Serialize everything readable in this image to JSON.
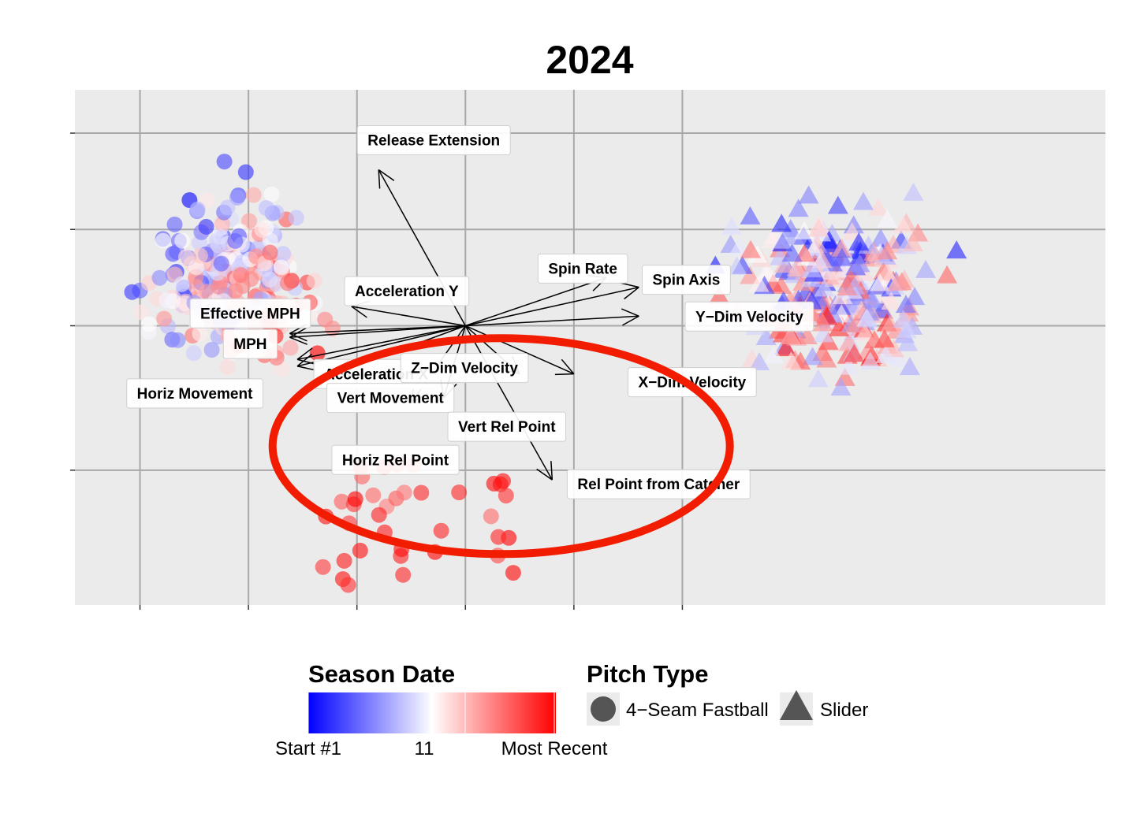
{
  "chart_data": {
    "type": "scatter",
    "title": "2024",
    "xlabel": "",
    "ylabel": "",
    "xlim": [
      -3.6,
      5.9
    ],
    "ylim": [
      -2.9,
      2.45
    ],
    "grid": true,
    "legend_position": "bottom",
    "series": [
      {
        "name": "4−Seam Fastball",
        "shape": "circle",
        "center": [
          -2.2,
          0.6
        ],
        "count": 320
      },
      {
        "name": "Slider",
        "shape": "triangle",
        "center": [
          3.4,
          0.4
        ],
        "count": 300
      }
    ],
    "vectors": [
      {
        "label": "Release Extension",
        "x": -0.8,
        "y": 1.62
      },
      {
        "label": "Spin Rate",
        "x": 1.3,
        "y": 0.5
      },
      {
        "label": "Spin Axis",
        "x": 1.6,
        "y": 0.4
      },
      {
        "label": "Y−Dim Velocity",
        "x": 1.6,
        "y": 0.1
      },
      {
        "label": "Effective MPH",
        "x": -1.62,
        "y": -0.08
      },
      {
        "label": "Acceleration Y",
        "x": -1.05,
        "y": 0.2
      },
      {
        "label": "MPH",
        "x": -1.62,
        "y": -0.12
      },
      {
        "label": "Acceleration X",
        "x": -1.55,
        "y": -0.35
      },
      {
        "label": "Z−Dim Velocity",
        "x": 0.5,
        "y": -0.5
      },
      {
        "label": "X−Dim Velocity",
        "x": 1.0,
        "y": -0.5
      },
      {
        "label": "Horiz Movement",
        "x": -1.55,
        "y": -0.42
      },
      {
        "label": "Vert Movement",
        "x": -1.2,
        "y": -0.5
      },
      {
        "label": "Vert Rel Point",
        "x": -0.2,
        "y": -0.75
      },
      {
        "label": "Horiz Rel Point",
        "x": -0.5,
        "y": -0.8
      },
      {
        "label": "Rel Point from Catcher",
        "x": 0.8,
        "y": -1.6
      }
    ]
  },
  "legend": {
    "color_title": "Season Date",
    "color_labels": [
      "Start #1",
      "11",
      "Most Recent"
    ],
    "color_low": "#0000ff",
    "color_mid": "#ffffff",
    "color_high": "#ff0000",
    "shape_title": "Pitch Type",
    "shapes": [
      {
        "label": "4−Seam Fastball",
        "icon": "circle-icon"
      },
      {
        "label": "Slider",
        "icon": "triangle-icon"
      }
    ]
  },
  "annotation": {
    "color": "#f21d00",
    "shape": "ellipse"
  }
}
